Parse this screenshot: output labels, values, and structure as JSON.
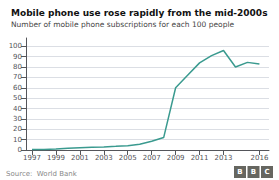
{
  "chart_data": {
    "type": "line",
    "title": "Mobile phone use rose rapidly from the mid-2000s",
    "subtitle": "Number of mobile phone subscriptions for each 100 people",
    "source": "Source:  World Bank",
    "logo": [
      "B",
      "B",
      "C"
    ],
    "x": [
      1997,
      1998,
      1999,
      2000,
      2001,
      2002,
      2003,
      2004,
      2005,
      2006,
      2007,
      2008,
      2009,
      2010,
      2011,
      2012,
      2013,
      2014,
      2015,
      2016
    ],
    "values": [
      0.4,
      0.6,
      1.0,
      1.8,
      2.2,
      2.6,
      3.0,
      3.5,
      4.2,
      5.5,
      8.5,
      12.0,
      60.0,
      72.0,
      84.0,
      91.0,
      96.0,
      80.0,
      84.5,
      83.0
    ],
    "color": "#3a9a8f",
    "xlim": [
      1996.5,
      2016.8
    ],
    "xticks": [
      1997,
      1999,
      2001,
      2003,
      2005,
      2007,
      2009,
      2011,
      2013,
      2016
    ],
    "ylim": [
      0,
      108
    ],
    "yticks": [
      0,
      10,
      20,
      30,
      40,
      50,
      60,
      70,
      80,
      90,
      100
    ],
    "grid": true
  }
}
